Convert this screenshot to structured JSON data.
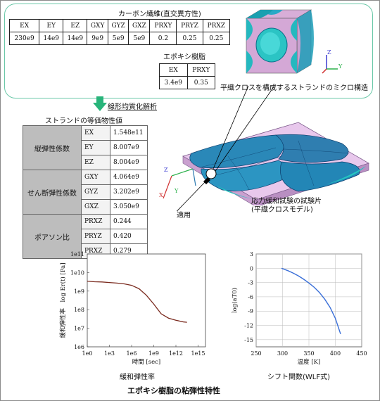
{
  "carbon": {
    "title": "カーボン繊維(直交異方性)",
    "headers": [
      "EX",
      "EY",
      "EZ",
      "GXY",
      "GYZ",
      "GXZ",
      "PRXY",
      "PRYZ",
      "PRXZ"
    ],
    "values": [
      "230e9",
      "14e9",
      "14e9",
      "9e9",
      "5e9",
      "5e9",
      "0.2",
      "0.25",
      "0.25"
    ]
  },
  "epoxy": {
    "title": "エポキシ樹脂",
    "headers": [
      "EX",
      "PRXY"
    ],
    "values": [
      "3.4e9",
      "0.35"
    ]
  },
  "micro_caption": "平織クロスを構成するストランドのミクロ構造",
  "homogenization_label": "線形均質化解析",
  "equivalent": {
    "title": "ストランドの等価物性値",
    "groups": [
      {
        "name": "縦弾性係数",
        "props": [
          "EX",
          "EY",
          "EZ"
        ],
        "values": [
          "1.548e11",
          "8.007e9",
          "8.004e9"
        ]
      },
      {
        "name": "せん断弾性係数",
        "props": [
          "GXY",
          "GYZ",
          "GXZ"
        ],
        "values": [
          "4.064e9",
          "3.202e9",
          "3.050e9"
        ]
      },
      {
        "name": "ポアソン比",
        "props": [
          "PRXZ",
          "PRYZ",
          "PRXZ"
        ],
        "values": [
          "0.244",
          "0.420",
          "0.279"
        ]
      }
    ]
  },
  "apply_label": "適用",
  "specimen_caption": [
    "応力緩和試験の試験片",
    "(平織クロスモデル)"
  ],
  "axes_labels": {
    "z": "Z",
    "y": "Y",
    "x": "X"
  },
  "chart_data": [
    {
      "type": "line",
      "title": "緩和弾性率",
      "xlabel": "時間 [sec]",
      "ylabel": "緩和弾性率　log Er(t) [Pa]",
      "x_scale": "log",
      "y_scale": "log",
      "xticks": [
        "1e0",
        "1e3",
        "1e6",
        "1e9",
        "1e12",
        "1e15"
      ],
      "yticks": [
        "1e6",
        "1e7",
        "1e8",
        "1e9",
        "1e10",
        "1e11"
      ],
      "xlim": [
        1,
        1e+16
      ],
      "ylim": [
        1000000.0,
        100000000000.0
      ],
      "color": "#7a2a1e",
      "grid": false,
      "series": [
        {
          "x": [
            1,
            10,
            100,
            1000,
            10000,
            100000,
            1000000,
            10000000,
            100000000,
            1000000000,
            10000000000,
            100000000000,
            1000000000000,
            10000000000000,
            31622776601683
          ],
          "y": [
            3400000000,
            3200000000,
            3100000000,
            2900000000,
            2700000000,
            2450000000,
            2050000000,
            1350000000,
            600000000,
            200000000,
            60000000,
            35000000,
            27000000,
            22000000,
            21000000
          ]
        }
      ]
    },
    {
      "type": "line",
      "title": "シフト関数(WLF式)",
      "xlabel": "温度 [K]",
      "ylabel": "log(aT0)",
      "xticks": [
        "250",
        "300",
        "350",
        "400",
        "450"
      ],
      "yticks": [
        "3",
        "0",
        "-3",
        "-6",
        "-9",
        "-12",
        "-15"
      ],
      "xlim": [
        250,
        450
      ],
      "ylim": [
        -16.5,
        3
      ],
      "color": "#3a6fd8",
      "grid": true,
      "series": [
        {
          "x": [
            298,
            310,
            320,
            330,
            340,
            350,
            360,
            370,
            380,
            390,
            400,
            410
          ],
          "y": [
            0,
            -0.5,
            -1.0,
            -1.6,
            -2.3,
            -3.1,
            -4.0,
            -5.1,
            -6.5,
            -8.2,
            -10.5,
            -13.8
          ]
        }
      ]
    }
  ],
  "main_caption": "エポキシ樹脂の粘弾性特性"
}
